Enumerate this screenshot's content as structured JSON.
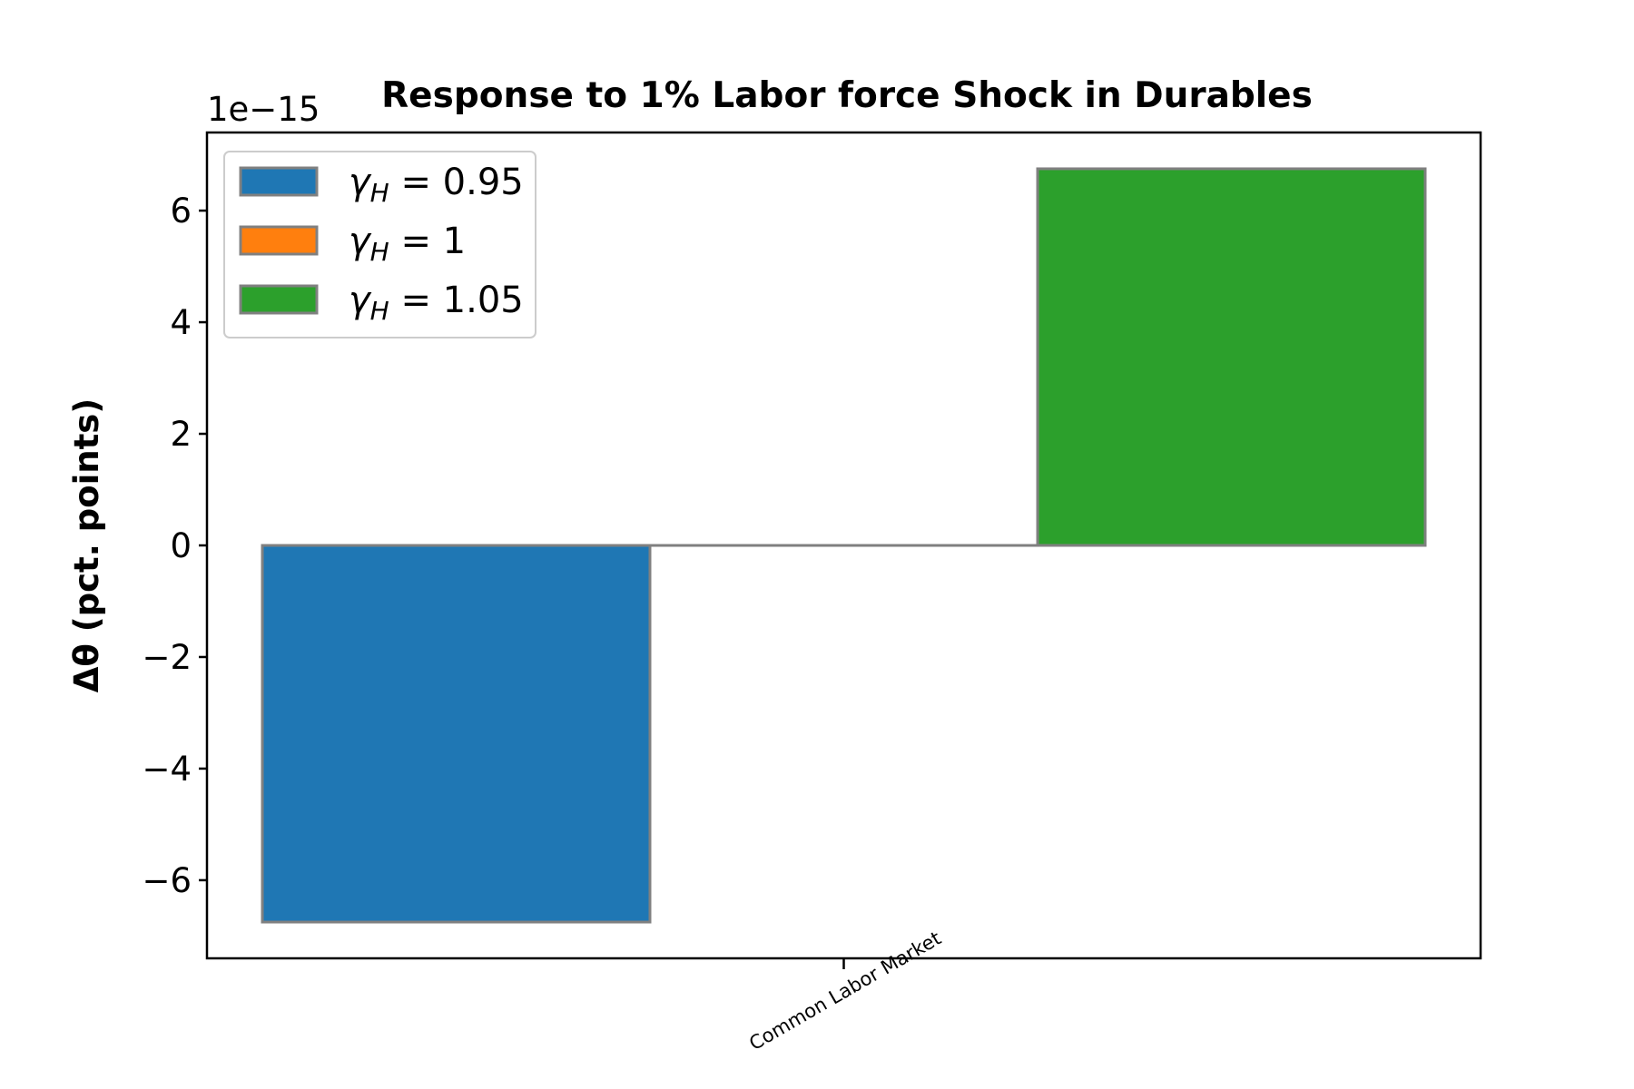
{
  "chart_data": {
    "type": "bar",
    "title": "Response to 1% Labor force Shock in Durables",
    "ylabel": "Δθ  (pct. points)",
    "xlabel": "",
    "categories": [
      "Common Labor Market"
    ],
    "y_offset_label": "1e−15",
    "y_scale": 1e-15,
    "ylim": [
      -7.4,
      7.4
    ],
    "yticks": [
      -6,
      -4,
      -2,
      0,
      2,
      4,
      6
    ],
    "ytick_labels": [
      "−6",
      "−4",
      "−2",
      "0",
      "2",
      "4",
      "6"
    ],
    "grid": false,
    "legend_position": "top-left",
    "series": [
      {
        "name": "γH = 0.95",
        "name_symbol": "γ",
        "name_subscript": "H",
        "name_rest": " = 0.95",
        "values": [
          -6.75
        ],
        "color": "#1f77b4"
      },
      {
        "name": "γH = 1",
        "name_symbol": "γ",
        "name_subscript": "H",
        "name_rest": " = 1",
        "values": [
          0
        ],
        "color": "#ff7f0e"
      },
      {
        "name": "γH = 1.05",
        "name_symbol": "γ",
        "name_subscript": "H",
        "name_rest": " = 1.05",
        "values": [
          6.75
        ],
        "color": "#2ca02c"
      }
    ],
    "bar_edge_color": "#808080"
  }
}
